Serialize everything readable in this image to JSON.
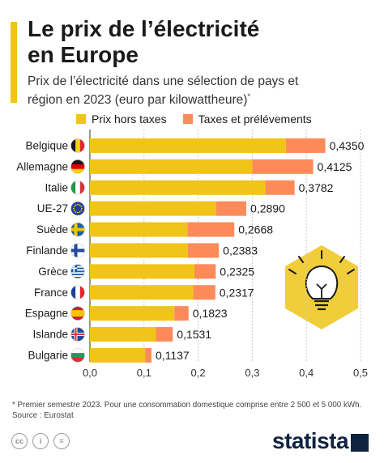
{
  "title_lines": [
    "Le prix de l’électricité",
    "en Europe"
  ],
  "subtitle_lines": [
    "Prix de l’électricité dans une sélection de pays et",
    "région en 2023 (euro par kilowattheure)"
  ],
  "subtitle_marker": "*",
  "colors": {
    "accent": "#f0c419",
    "base": "#f0c419",
    "tax": "#fd8b5a",
    "grid": "#c8c8c8",
    "brand": "#0f2340",
    "bulb_hex": "#f0c419"
  },
  "chart_data": {
    "type": "bar",
    "orientation": "horizontal",
    "stacked": true,
    "categories": [
      "Belgique",
      "Allemagne",
      "Italie",
      "UE-27",
      "Suède",
      "Finlande",
      "Grèce",
      "France",
      "Espagne",
      "Islande",
      "Bulgarie"
    ],
    "flags": [
      "belgium",
      "germany",
      "italy",
      "eu",
      "sweden",
      "finland",
      "greece",
      "france",
      "spain",
      "iceland",
      "bulgaria"
    ],
    "series": [
      {
        "name": "Prix hors taxes",
        "values": [
          0.362,
          0.3,
          0.324,
          0.233,
          0.18,
          0.181,
          0.193,
          0.191,
          0.156,
          0.122,
          0.102
        ]
      },
      {
        "name": "Taxes et prélévements",
        "values": [
          0.073,
          0.1125,
          0.0542,
          0.056,
          0.0868,
          0.0573,
          0.0395,
          0.0407,
          0.0263,
          0.0311,
          0.0117
        ]
      }
    ],
    "totals_labels": [
      "0,4350",
      "0,4125",
      "0,3782",
      "0,2890",
      "0,2668",
      "0,2383",
      "0,2325",
      "0,2317",
      "0,1823",
      "0,1531",
      "0,1137"
    ],
    "xlim": [
      0,
      0.5
    ],
    "x_ticks": [
      0,
      0.1,
      0.2,
      0.3,
      0.4,
      0.5
    ],
    "x_tick_labels": [
      "0,0",
      "0,1",
      "0,2",
      "0,3",
      "0,4",
      "0,5"
    ],
    "grid": true,
    "legend_position": "top"
  },
  "footnote_lines": [
    "* Premier semestre 2023. Pour une consommation domestique comprise entre 2 500 et 5 000 kWh.",
    "Source : Eurostat"
  ],
  "footer_icons": [
    "cc-icon",
    "by-icon",
    "nd-icon"
  ],
  "footer_icon_glyphs": [
    "cc",
    "i",
    "="
  ],
  "brand_name": "statista"
}
